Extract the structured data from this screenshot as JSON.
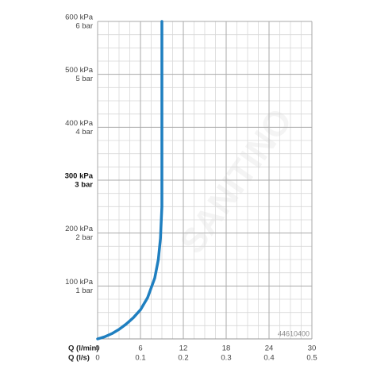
{
  "chart_data": {
    "type": "line",
    "xlabel": "Q (l/min)",
    "x2label": "Q (l/s)",
    "xlim": [
      0,
      30
    ],
    "xticks": [
      0,
      6,
      12,
      18,
      24,
      30
    ],
    "x2lim": [
      0,
      0.5
    ],
    "x2ticks": [
      0,
      0.1,
      0.2,
      0.3,
      0.4,
      0.5
    ],
    "ylim": [
      0,
      600
    ],
    "yticks": [
      {
        "value": 100,
        "label": "100 kPa"
      },
      {
        "value": 200,
        "label": "200 kPa"
      },
      {
        "value": 300,
        "label": "300 kPa"
      },
      {
        "value": 400,
        "label": "400 kPa"
      },
      {
        "value": 500,
        "label": "500 kPa"
      },
      {
        "value": 600,
        "label": "600 kPa"
      }
    ],
    "ytick_bar_labels": [
      "1 bar",
      "2 bar",
      "3 bar",
      "4 bar",
      "5 bar",
      "6 bar"
    ],
    "bold_ytick": 300,
    "grid": true,
    "minor_divisions": 4,
    "code": "44610400",
    "watermark": "SANITINO",
    "series": [
      {
        "color": "#1f7fc0",
        "x": [
          0,
          1,
          2,
          3,
          4,
          5,
          6,
          7,
          8,
          8.5,
          8.8,
          9,
          9,
          9
        ],
        "values": [
          0,
          4,
          10,
          18,
          28,
          40,
          55,
          78,
          115,
          150,
          190,
          250,
          400,
          600
        ]
      }
    ]
  }
}
